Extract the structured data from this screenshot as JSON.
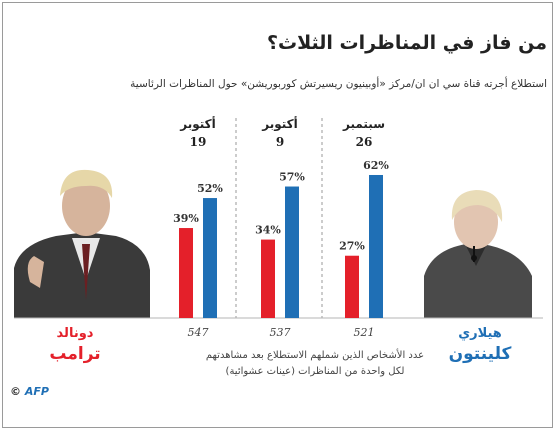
{
  "title": "من فاز في المناظرات الثلاث؟",
  "subtitle": "استطلاع أجرته قناة سي ان ان/مركز «أوبينيون ريسيرتش كوربوريشن» حول المناظرات الرئاسية",
  "candidates": {
    "trump": {
      "first": "دونالد",
      "last": "ترامب",
      "color": "#e4202a"
    },
    "clinton": {
      "first": "هيلاري",
      "last": "كلينتون",
      "color": "#1f6fb5"
    }
  },
  "note": [
    "عدد الأشخاص الذين شملهم الاستطلاع بعد مشاهدتهم",
    "لكل واحدة من المناظرات (عينات عشوائية)"
  ],
  "credit": {
    "symbol": "©",
    "agency": "AFP"
  },
  "chart_data": {
    "type": "bar",
    "categories": [
      {
        "month": "أكتوبر",
        "day": "19",
        "sample": "547"
      },
      {
        "month": "أكتوبر",
        "day": "9",
        "sample": "537"
      },
      {
        "month": "سبتمبر",
        "day": "26",
        "sample": "521"
      }
    ],
    "series": [
      {
        "candidate": "trump",
        "color": "#e4202a",
        "values": [
          39,
          34,
          27
        ]
      },
      {
        "candidate": "clinton",
        "color": "#1f6fb5",
        "values": [
          52,
          57,
          62
        ]
      }
    ],
    "value_suffix": "%",
    "ylim": [
      0,
      75
    ]
  }
}
